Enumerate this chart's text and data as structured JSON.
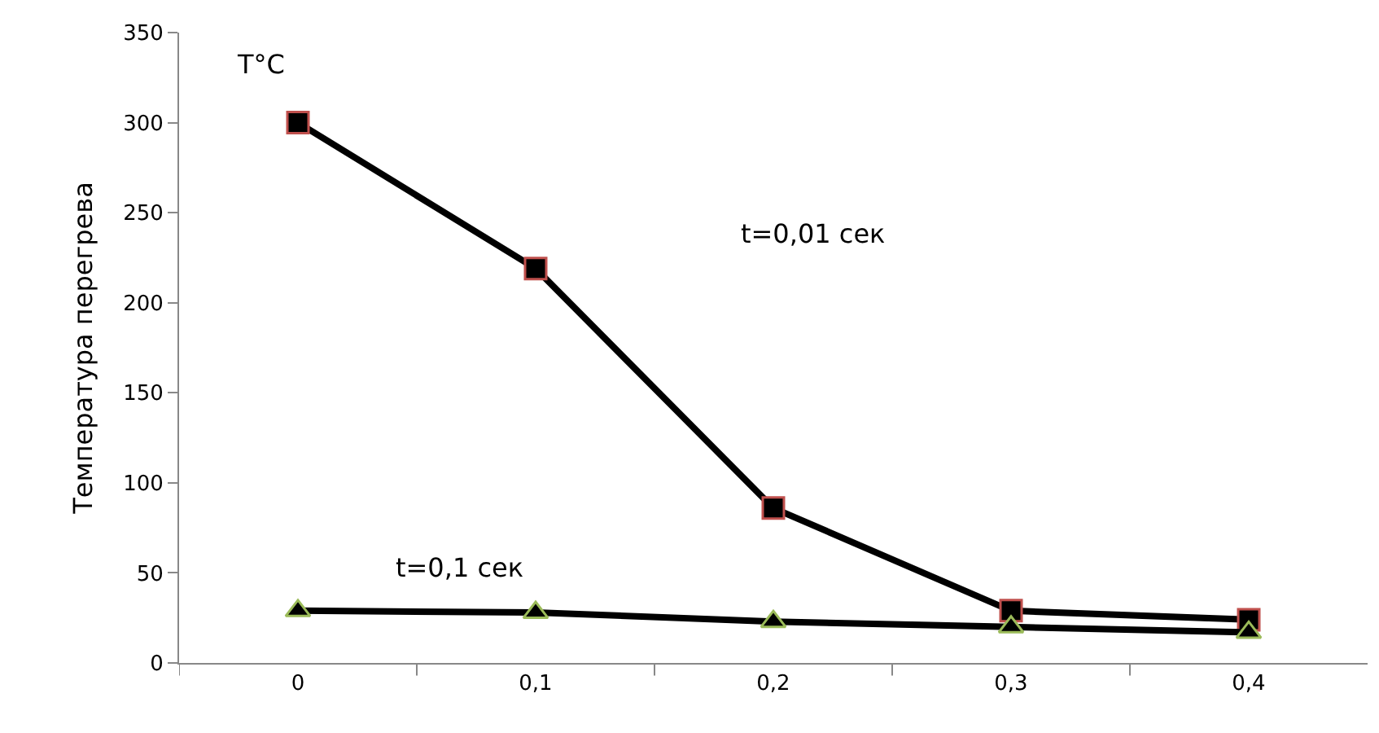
{
  "chart_data": {
    "type": "line",
    "ylabel": "Температура перегрева",
    "categories": [
      "0",
      "0,1",
      "0,2",
      "0,3",
      "0,4"
    ],
    "series": [
      {
        "color": "#000000",
        "marker": "square",
        "values": [
          300,
          219,
          86,
          29,
          24
        ]
      },
      {
        "color": "#000000",
        "marker": "triangle",
        "values": [
          29,
          28,
          23,
          20,
          17
        ]
      }
    ],
    "annotations": [
      "T°C",
      "t=0,01 сек",
      "t=0,1 сек"
    ],
    "ylim": [
      0,
      350
    ],
    "yticks": [
      0,
      50,
      100,
      150,
      200,
      250,
      300,
      350
    ],
    "grid": false,
    "line_style": "solid"
  }
}
